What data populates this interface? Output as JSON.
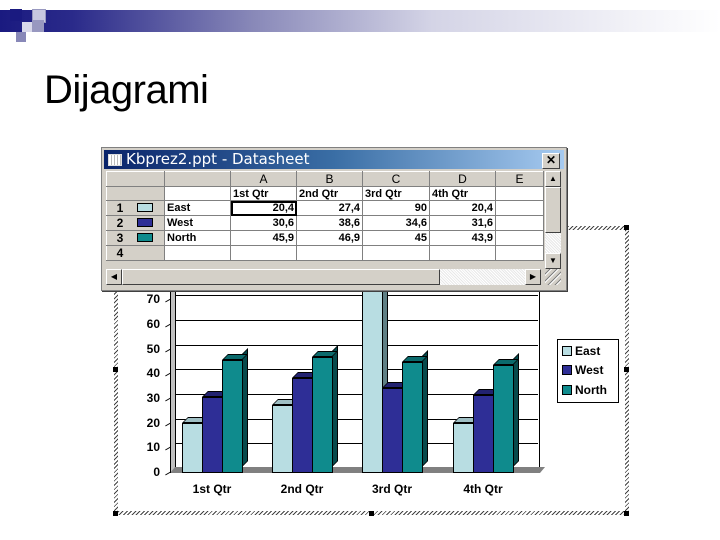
{
  "slide": {
    "title": "Dijagrami"
  },
  "datasheet": {
    "window_title": "Kbprez2.ppt - Datasheet",
    "close_label": "✕",
    "column_headers": [
      "A",
      "B",
      "C",
      "D",
      "E"
    ],
    "category_row": [
      "1st Qtr",
      "2nd Qtr",
      "3rd Qtr",
      "4th Qtr",
      ""
    ],
    "rows": [
      {
        "row_num": "1",
        "label": "East",
        "values": [
          "20,4",
          "27,4",
          "90",
          "20,4",
          ""
        ]
      },
      {
        "row_num": "2",
        "label": "West",
        "values": [
          "30,6",
          "38,6",
          "34,6",
          "31,6",
          ""
        ]
      },
      {
        "row_num": "3",
        "label": "North",
        "values": [
          "45,9",
          "46,9",
          "45",
          "43,9",
          ""
        ]
      },
      {
        "row_num": "4",
        "label": "",
        "values": [
          "",
          "",
          "",
          "",
          ""
        ]
      }
    ],
    "scroll_up": "▲",
    "scroll_down": "▼",
    "scroll_left": "◀",
    "scroll_right": "▶"
  },
  "colors": {
    "east": "#b8dde2",
    "west": "#2e2e96",
    "north": "#0f8b8d",
    "title_bar_start": "#0a246a",
    "title_bar_end": "#a6caf0"
  },
  "chart_data": {
    "type": "bar",
    "title": "",
    "xlabel": "",
    "ylabel": "",
    "categories": [
      "1st Qtr",
      "2nd Qtr",
      "3rd Qtr",
      "4th Qtr"
    ],
    "series": [
      {
        "name": "East",
        "values": [
          20.4,
          27.4,
          90,
          20.4
        ]
      },
      {
        "name": "West",
        "values": [
          30.6,
          38.6,
          34.6,
          31.6
        ]
      },
      {
        "name": "North",
        "values": [
          45.9,
          46.9,
          45,
          43.9
        ]
      }
    ],
    "yticks_visible": [
      "0",
      "10",
      "20",
      "30",
      "40",
      "50",
      "60",
      "70"
    ],
    "ylim": [
      0,
      90
    ],
    "grid": true,
    "legend_position": "right",
    "legend": [
      "East",
      "West",
      "North"
    ],
    "style": "3D clustered column"
  }
}
